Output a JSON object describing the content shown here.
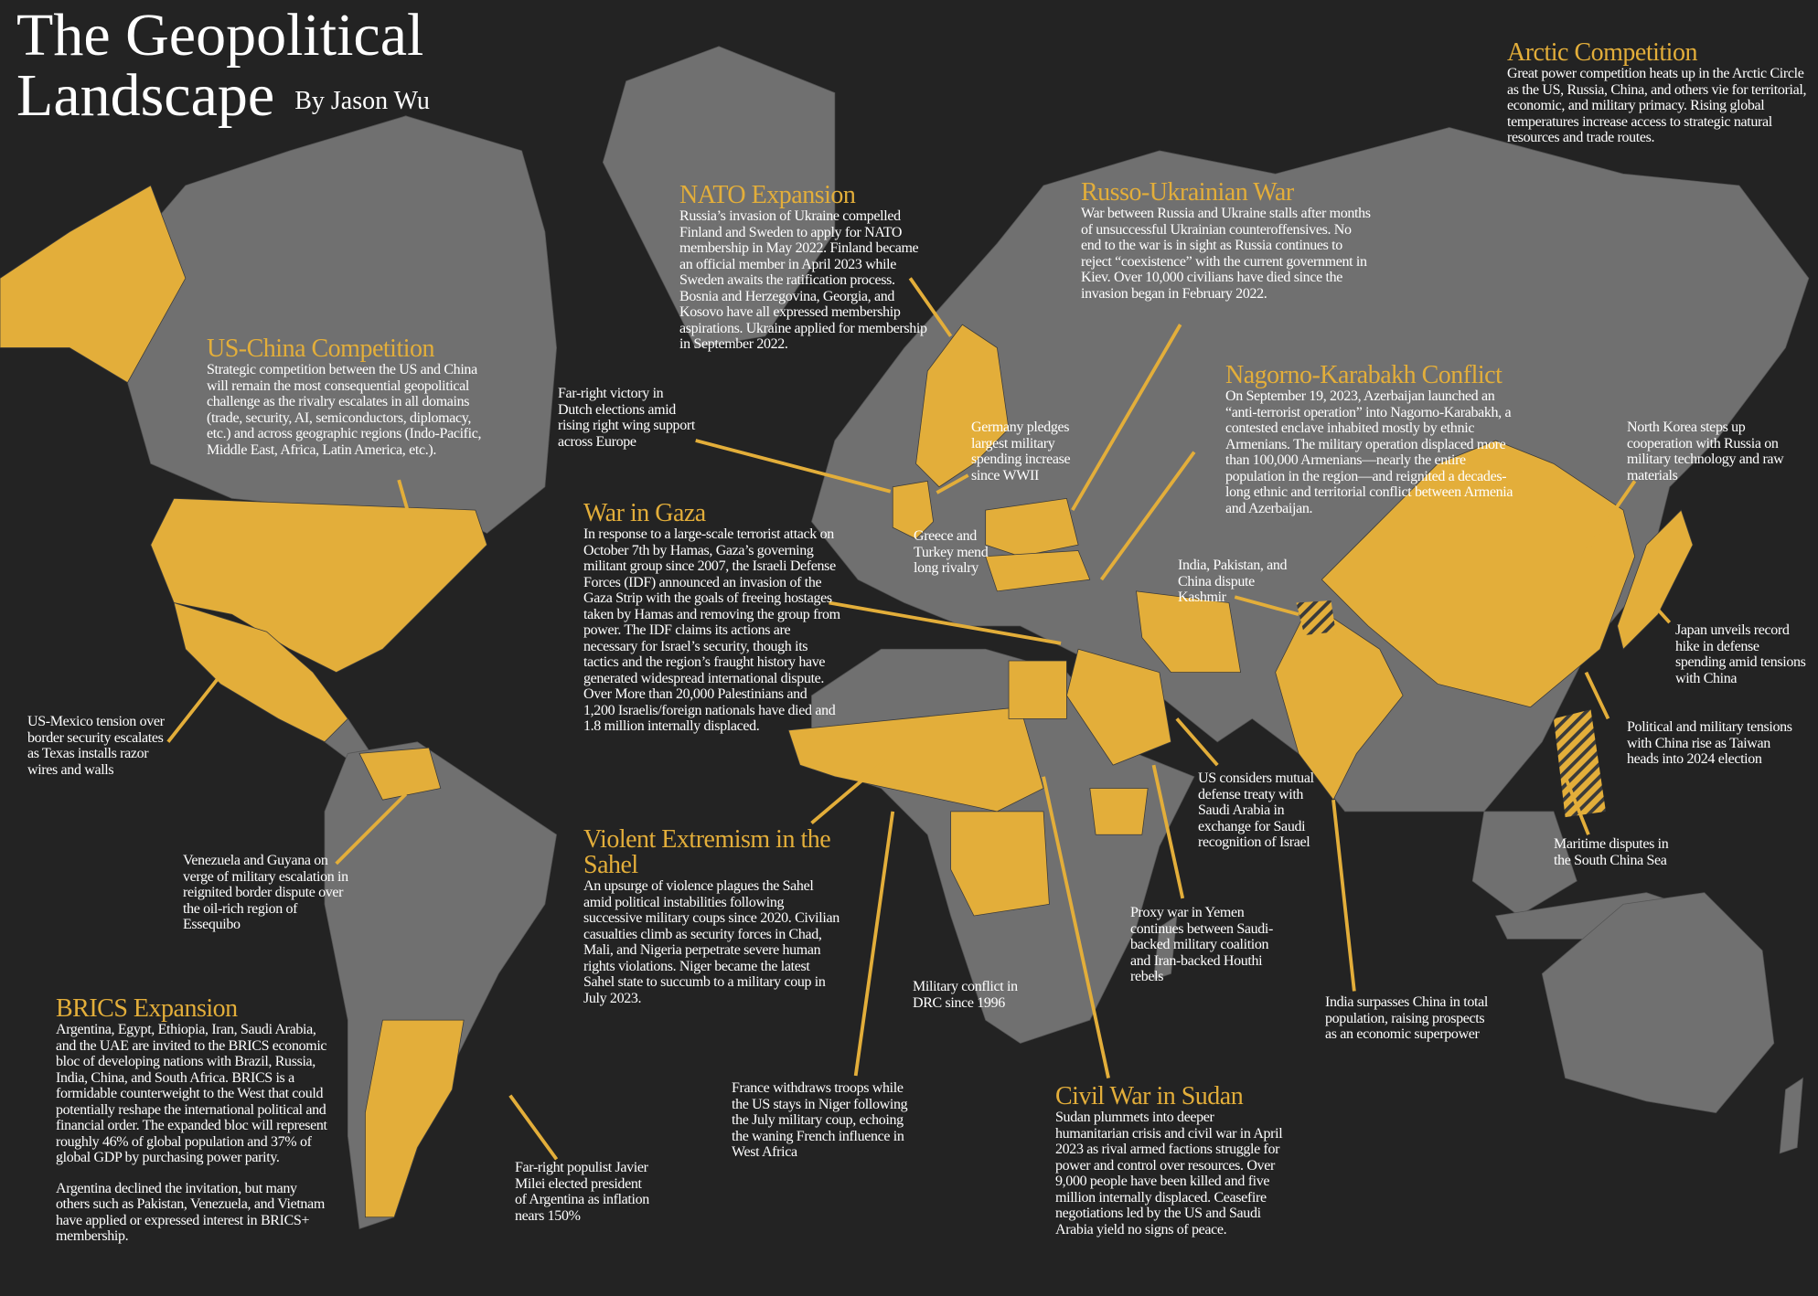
{
  "header": {
    "title_line1": "The Geopolitical",
    "title_line2": "Landscape",
    "byline": "By Jason Wu"
  },
  "colors": {
    "background": "#232323",
    "land": "#707070",
    "highlight": "#e3ae3a",
    "text": "#ffffff"
  },
  "sections": {
    "arctic": {
      "title": "Arctic Competition",
      "body": "Great power competition heats up in the Arctic Circle as the US, Russia, China, and others vie for territorial, economic, and military primacy. Rising global temperatures increase access to strategic natural resources and trade routes."
    },
    "nato": {
      "title": "NATO Expansion",
      "body": "Russia’s invasion of Ukraine compelled Finland and Sweden to apply for NATO membership in May 2022. Finland became an official member in April 2023 while Sweden awaits the ratification process. Bosnia and Herzegovina, Georgia, and Kosovo have all expressed membership aspirations. Ukraine applied for membership in September 2022."
    },
    "russo": {
      "title": "Russo-Ukrainian War",
      "body": "War between Russia and Ukraine stalls after months of unsuccessful Ukrainian counteroffensives. No end to the war is in sight as Russia continues to reject “coexistence” with the current government in Kiev. Over 10,000 civilians have died since the invasion began in February 2022."
    },
    "uschina": {
      "title": "US-China Competition",
      "body": "Strategic competition between the US and China will remain the most consequential geopolitical challenge as the rivalry escalates in all domains (trade, security, AI, semiconductors, diplomacy, etc.) and across geographic regions (Indo-Pacific, Middle East, Africa, Latin America, etc.)."
    },
    "nagorno": {
      "title": "Nagorno-Karabakh Conflict",
      "body": "On September 19, 2023, Azerbaijan launched an “anti-terrorist operation” into Nagorno-Karabakh, a contested enclave inhabited mostly by ethnic Armenians. The military operation displaced more than 100,000 Armenians—nearly the entire population in the region—and reignited a decades-long ethnic and territorial conflict between Armenia and Azerbaijan."
    },
    "gaza": {
      "title": "War in Gaza",
      "body": "In response to a large-scale terrorist attack on October 7th by Hamas, Gaza’s governing militant group since 2007, the Israeli Defense Forces (IDF) announced an invasion of the Gaza Strip with the goals of freeing hostages taken by Hamas and removing the group from power. The IDF claims its actions are necessary for Israel’s security, though its tactics and the region’s fraught history have generated widespread international dispute. Over More than 20,000 Palestinians and 1,200 Israelis/foreign nationals have died and 1.8 million internally displaced."
    },
    "sahel": {
      "title": "Violent Extremism in the Sahel",
      "body": "An upsurge of violence plagues the Sahel amid political instabilities following successive military coups since 2020. Civilian casualties climb as security forces in Chad, Mali, and Nigeria perpetrate severe human rights violations. Niger became the latest Sahel state to succumb to a military coup in July 2023."
    },
    "brics": {
      "title": "BRICS Expansion",
      "body": "Argentina, Egypt, Ethiopia, Iran, Saudi Arabia, and the UAE are invited to the BRICS economic bloc of developing nations with Brazil, Russia, India, China, and South Africa. BRICS is a formidable counterweight to the West that could potentially reshape the international political and financial order. The expanded bloc will represent roughly 46% of global population and 37% of global GDP by purchasing power parity.",
      "body2": "Argentina declined the invitation, but many others such as Pakistan, Venezuela, and Vietnam have applied or expressed interest in BRICS+ membership."
    },
    "sudan": {
      "title": "Civil War in Sudan",
      "body": "Sudan plummets into deeper humanitarian crisis and civil war in April 2023 as rival armed factions struggle for power and control over resources. Over 9,000 people have been killed and five million internally displaced. Ceasefire negotiations led by the US and Saudi Arabia yield no signs of peace."
    }
  },
  "notes": {
    "dutch": "Far-right victory in Dutch elections amid rising right wing support across Europe",
    "germany": "Germany pledges largest military spending increase since WWII",
    "north_korea": "North Korea steps up cooperation with Russia on military technology and raw materials",
    "greece": "Greece and Turkey mend long rivalry",
    "kashmir": "India, Pakistan, and China dispute Kashmir",
    "japan": "Japan unveils record hike in defense spending amid tensions with China",
    "us_mexico": "US-Mexico tension over border security escalates as Texas installs razor wires and walls",
    "taiwan": "Political and military tensions with China rise as Taiwan heads into 2024 election",
    "saudi": "US considers mutual defense treaty with Saudi Arabia in exchange for Saudi recognition of Israel",
    "venezuela": "Venezuela and Guyana on verge of military escalation in reignited border dispute over the oil-rich region of Essequibo",
    "scs": "Maritime disputes in the South China Sea",
    "yemen": "Proxy war in Yemen continues between Saudi-backed military coalition and Iran-backed Houthi rebels",
    "drc": "Military conflict in DRC since 1996",
    "india": "India surpasses China in total population, raising prospects as an economic superpower",
    "france": "France withdraws troops while the US stays in Niger following the July military coup, echoing the waning French influence in West Africa",
    "argentina": "Far-right populist Javier Milei elected president of Argentina as inflation nears 150%"
  }
}
